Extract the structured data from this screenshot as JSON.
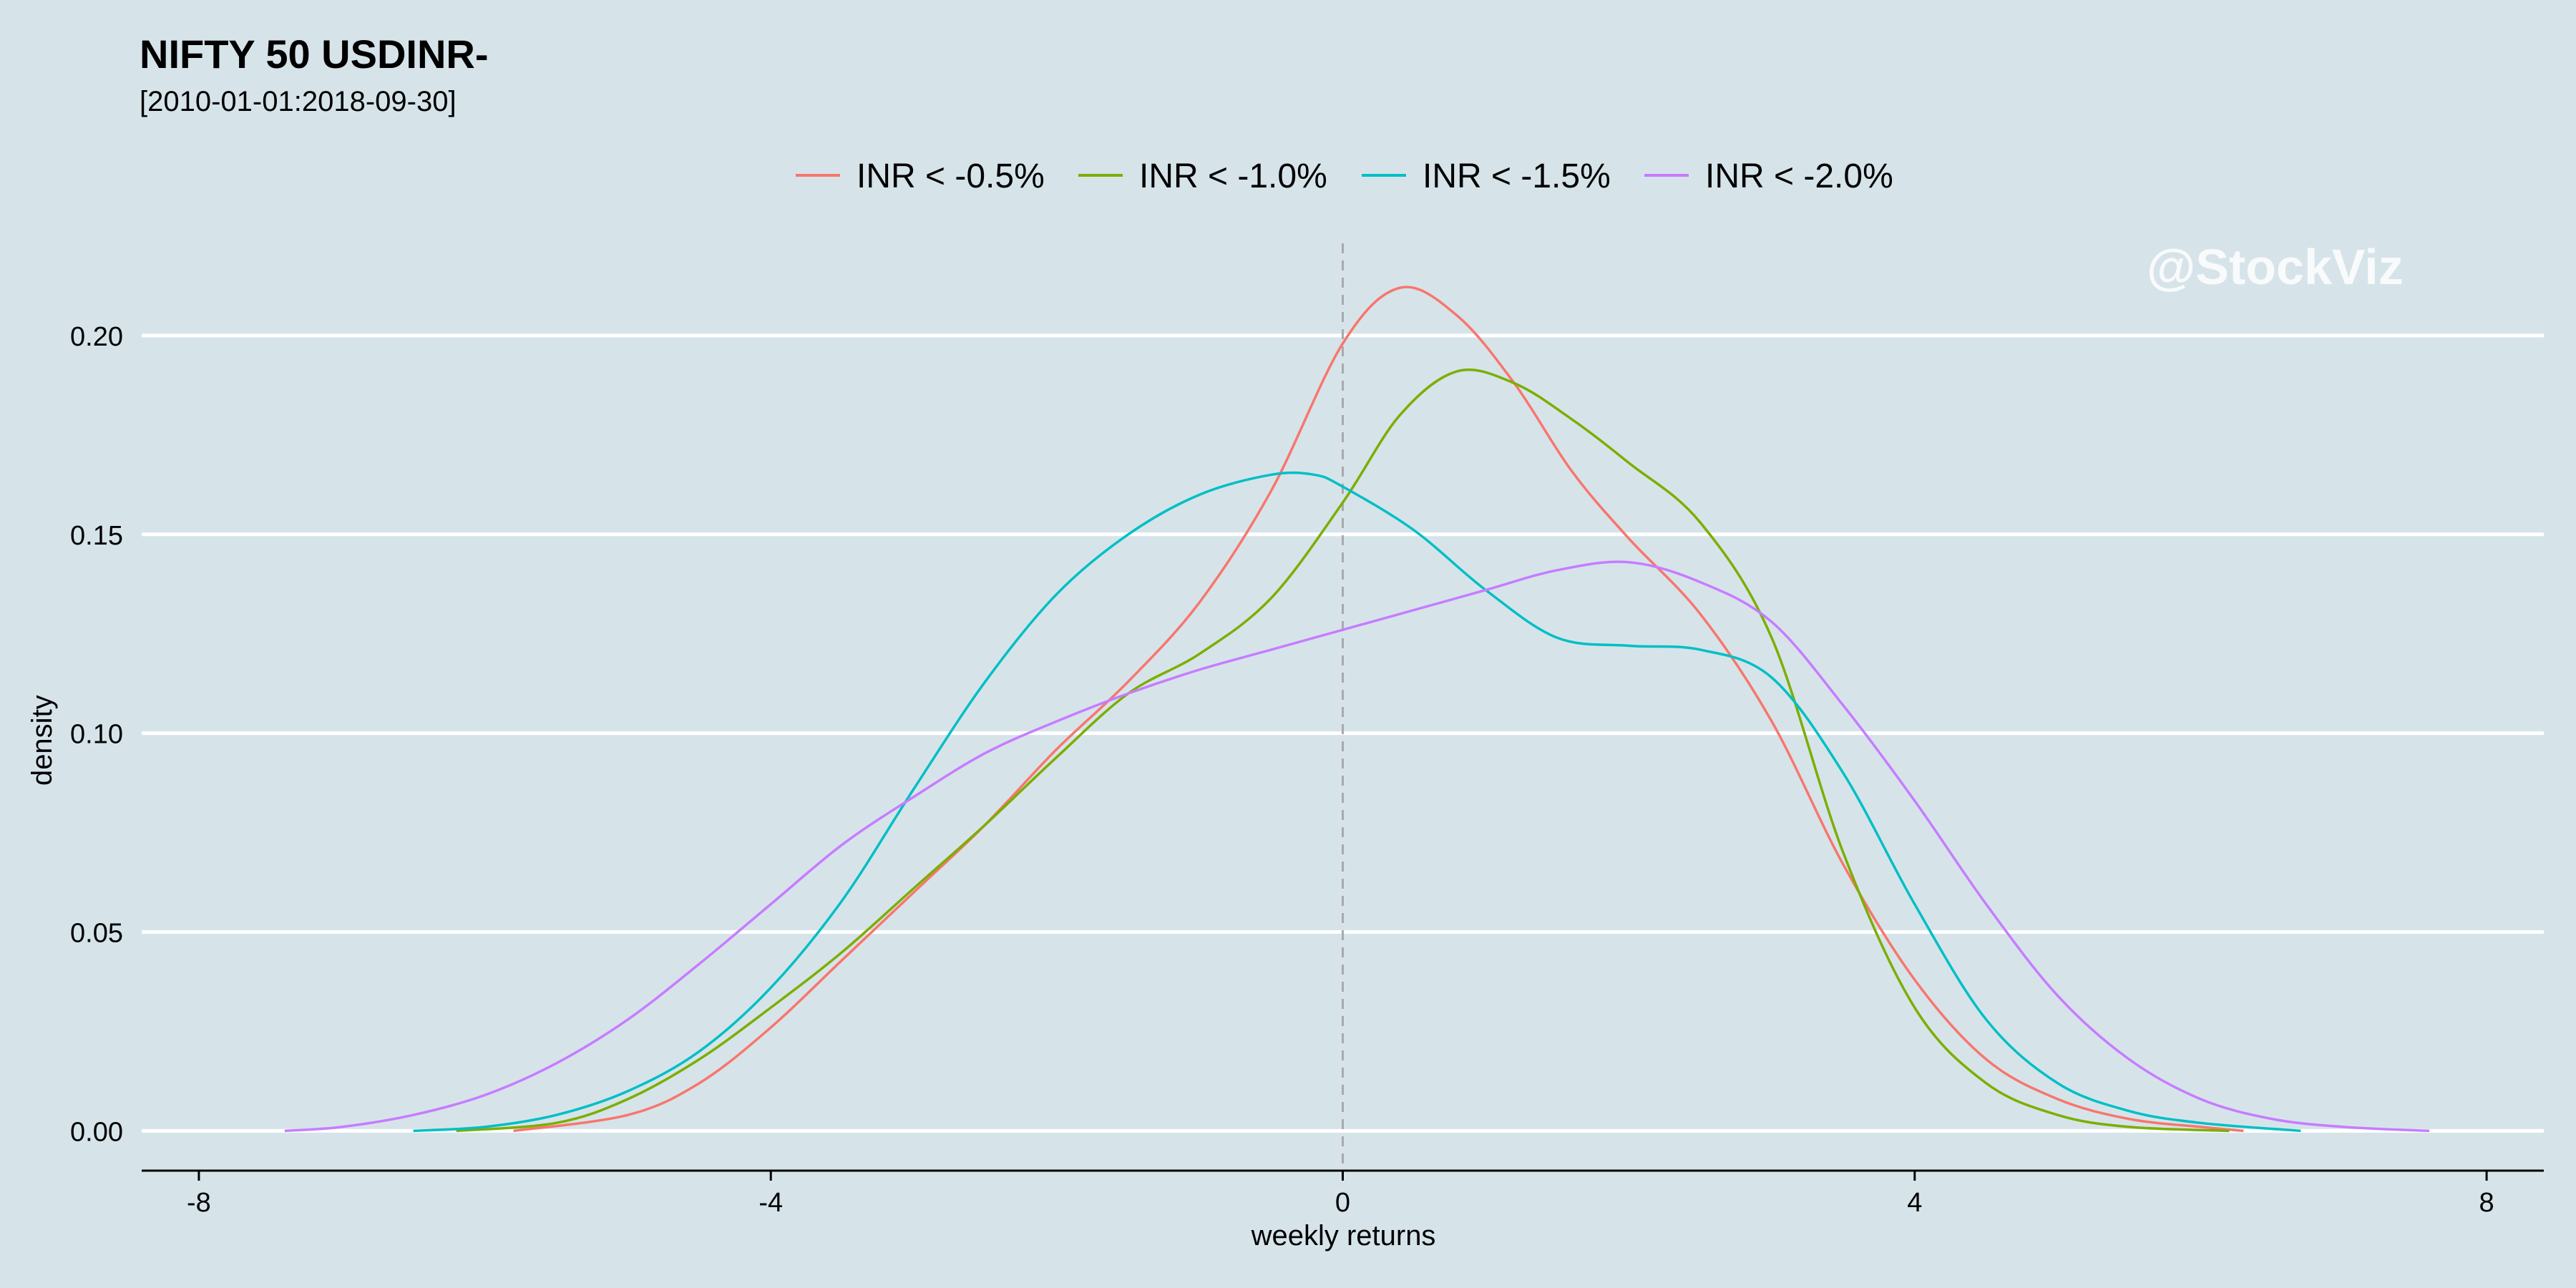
{
  "chart_data": {
    "type": "line",
    "title": "NIFTY 50 USDINR-",
    "subtitle": "[2010-01-01:2018-09-30]",
    "xlabel": "weekly returns",
    "ylabel": "density",
    "xlim": [
      -8.4,
      8.4
    ],
    "ylim": [
      -0.01,
      0.225
    ],
    "x_ticks": [
      -8,
      -4,
      0,
      4,
      8
    ],
    "x_tick_labels": [
      "-8",
      "-4",
      "0",
      "4",
      "8"
    ],
    "y_ticks": [
      0.0,
      0.05,
      0.1,
      0.15,
      0.2
    ],
    "y_tick_labels": [
      "0.00",
      "0.05",
      "0.10",
      "0.15",
      "0.20"
    ],
    "grid": "horizontal",
    "vline": {
      "x": 0,
      "style": "dashed"
    },
    "legend_position": "top",
    "watermark": "@StockViz",
    "series": [
      {
        "name": "INR < -0.5%",
        "color": "#f8766d",
        "points": [
          [
            -5.8,
            0.0
          ],
          [
            -5.0,
            0.004
          ],
          [
            -4.5,
            0.012
          ],
          [
            -4.0,
            0.026
          ],
          [
            -3.5,
            0.043
          ],
          [
            -3.0,
            0.06
          ],
          [
            -2.5,
            0.077
          ],
          [
            -2.0,
            0.096
          ],
          [
            -1.5,
            0.113
          ],
          [
            -1.0,
            0.133
          ],
          [
            -0.5,
            0.161
          ],
          [
            0.0,
            0.198
          ],
          [
            0.4,
            0.212
          ],
          [
            0.8,
            0.205
          ],
          [
            1.2,
            0.188
          ],
          [
            1.6,
            0.166
          ],
          [
            2.0,
            0.149
          ],
          [
            2.5,
            0.13
          ],
          [
            3.0,
            0.103
          ],
          [
            3.5,
            0.067
          ],
          [
            4.0,
            0.038
          ],
          [
            4.5,
            0.018
          ],
          [
            5.0,
            0.008
          ],
          [
            5.5,
            0.003
          ],
          [
            6.0,
            0.001
          ],
          [
            6.3,
            0.0
          ]
        ]
      },
      {
        "name": "INR < -1.0%",
        "color": "#7cae00",
        "points": [
          [
            -6.2,
            0.0
          ],
          [
            -5.5,
            0.002
          ],
          [
            -5.0,
            0.008
          ],
          [
            -4.5,
            0.018
          ],
          [
            -4.0,
            0.031
          ],
          [
            -3.5,
            0.045
          ],
          [
            -3.0,
            0.061
          ],
          [
            -2.5,
            0.077
          ],
          [
            -2.0,
            0.094
          ],
          [
            -1.5,
            0.11
          ],
          [
            -1.0,
            0.12
          ],
          [
            -0.5,
            0.134
          ],
          [
            0.0,
            0.158
          ],
          [
            0.4,
            0.18
          ],
          [
            0.8,
            0.191
          ],
          [
            1.2,
            0.188
          ],
          [
            1.6,
            0.179
          ],
          [
            2.0,
            0.168
          ],
          [
            2.5,
            0.153
          ],
          [
            3.0,
            0.124
          ],
          [
            3.5,
            0.07
          ],
          [
            4.0,
            0.031
          ],
          [
            4.5,
            0.012
          ],
          [
            5.0,
            0.004
          ],
          [
            5.5,
            0.001
          ],
          [
            6.2,
            0.0
          ]
        ]
      },
      {
        "name": "INR < -1.5%",
        "color": "#00bfc4",
        "points": [
          [
            -6.5,
            0.0
          ],
          [
            -6.0,
            0.001
          ],
          [
            -5.5,
            0.004
          ],
          [
            -5.0,
            0.01
          ],
          [
            -4.5,
            0.02
          ],
          [
            -4.0,
            0.036
          ],
          [
            -3.5,
            0.058
          ],
          [
            -3.0,
            0.086
          ],
          [
            -2.5,
            0.113
          ],
          [
            -2.0,
            0.135
          ],
          [
            -1.5,
            0.15
          ],
          [
            -1.0,
            0.16
          ],
          [
            -0.5,
            0.165
          ],
          [
            -0.2,
            0.165
          ],
          [
            0.0,
            0.162
          ],
          [
            0.5,
            0.151
          ],
          [
            1.0,
            0.136
          ],
          [
            1.5,
            0.124
          ],
          [
            2.0,
            0.122
          ],
          [
            2.5,
            0.121
          ],
          [
            3.0,
            0.114
          ],
          [
            3.5,
            0.09
          ],
          [
            4.0,
            0.057
          ],
          [
            4.5,
            0.028
          ],
          [
            5.0,
            0.012
          ],
          [
            5.5,
            0.005
          ],
          [
            6.0,
            0.002
          ],
          [
            6.7,
            0.0
          ]
        ]
      },
      {
        "name": "INR < -2.0%",
        "color": "#c77cff",
        "points": [
          [
            -7.4,
            0.0
          ],
          [
            -7.0,
            0.001
          ],
          [
            -6.5,
            0.004
          ],
          [
            -6.0,
            0.009
          ],
          [
            -5.5,
            0.017
          ],
          [
            -5.0,
            0.028
          ],
          [
            -4.5,
            0.042
          ],
          [
            -4.0,
            0.057
          ],
          [
            -3.5,
            0.072
          ],
          [
            -3.0,
            0.084
          ],
          [
            -2.5,
            0.095
          ],
          [
            -2.0,
            0.103
          ],
          [
            -1.5,
            0.11
          ],
          [
            -1.0,
            0.116
          ],
          [
            -0.5,
            0.121
          ],
          [
            0.0,
            0.126
          ],
          [
            0.5,
            0.131
          ],
          [
            1.0,
            0.136
          ],
          [
            1.5,
            0.141
          ],
          [
            2.0,
            0.143
          ],
          [
            2.5,
            0.138
          ],
          [
            3.0,
            0.128
          ],
          [
            3.5,
            0.107
          ],
          [
            4.0,
            0.083
          ],
          [
            4.5,
            0.057
          ],
          [
            5.0,
            0.034
          ],
          [
            5.5,
            0.018
          ],
          [
            6.0,
            0.008
          ],
          [
            6.5,
            0.003
          ],
          [
            7.0,
            0.001
          ],
          [
            7.6,
            0.0
          ]
        ]
      }
    ]
  }
}
